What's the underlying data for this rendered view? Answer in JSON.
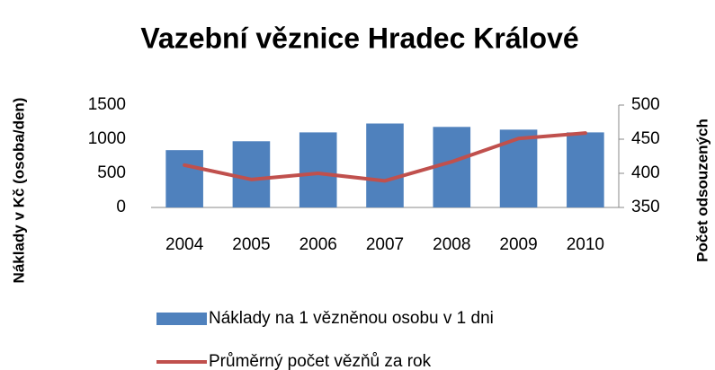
{
  "chart_data": {
    "type": "bar",
    "title": "Vazební věznice Hradec Králové",
    "y_label": "Náklady v Kč (osoba/den)",
    "y2_label": "Počet odsouzených",
    "categories": [
      "2004",
      "2005",
      "2006",
      "2007",
      "2008",
      "2009",
      "2010"
    ],
    "series": [
      {
        "name": "Náklady na 1 vězněnou osobu v 1 dni",
        "type": "bar",
        "color": "#4f81bd",
        "values": [
          840,
          970,
          1100,
          1230,
          1180,
          1140,
          1100
        ]
      },
      {
        "name": "Průměrný počet vězňů za rok",
        "type": "line",
        "axis": "y2",
        "color": "#c0504d",
        "values": [
          412,
          391,
          400,
          389,
          417,
          451,
          459
        ]
      }
    ],
    "ylim": [
      0,
      1500
    ],
    "yticks": [
      0,
      500,
      1000,
      1500
    ],
    "y2lim": [
      350,
      500
    ],
    "y2ticks": [
      350,
      400,
      450,
      500
    ],
    "grid": false,
    "legend": "bottom"
  }
}
